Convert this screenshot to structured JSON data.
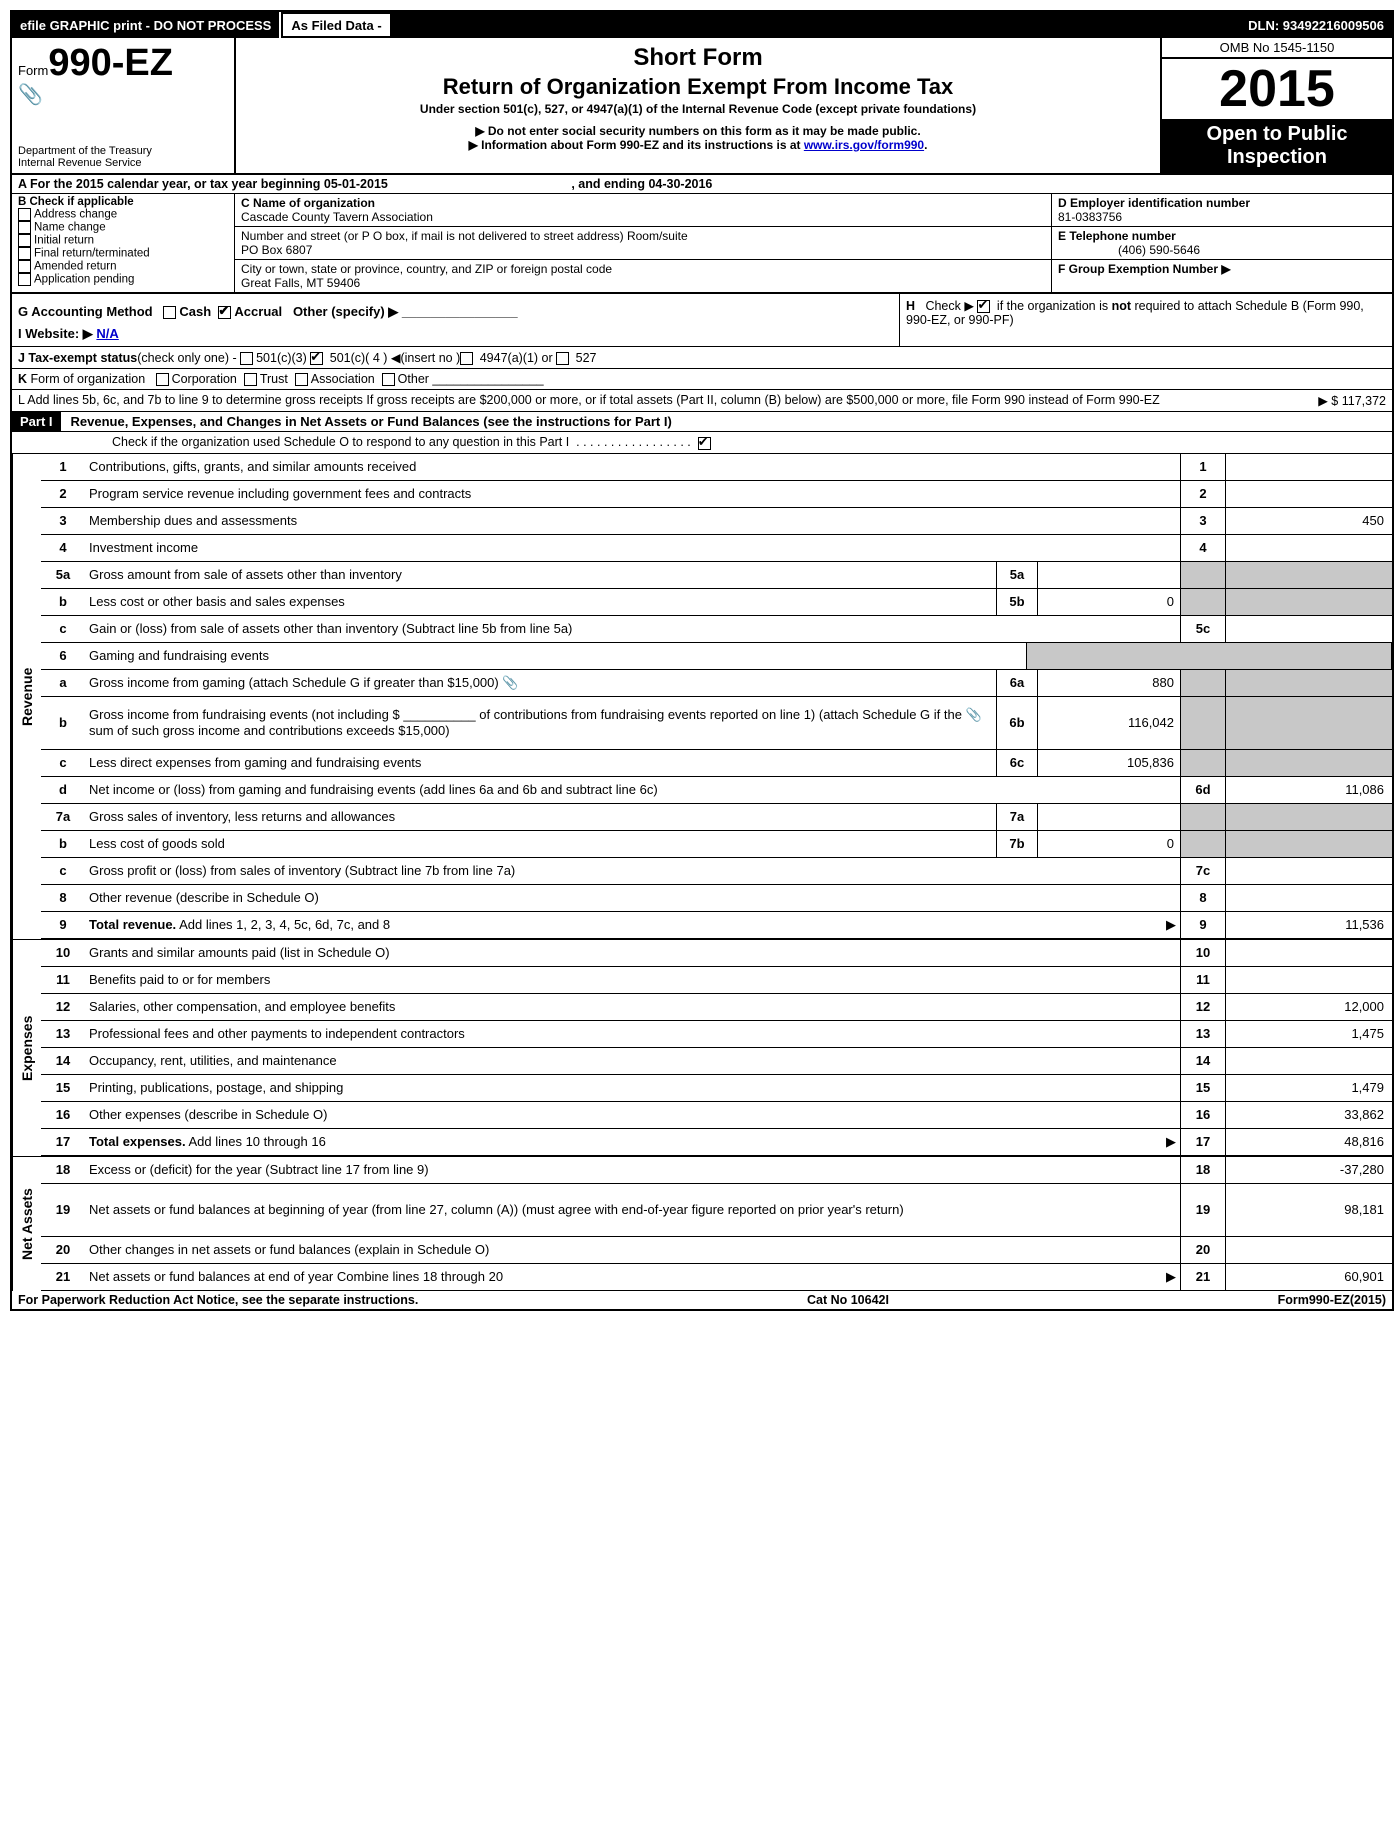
{
  "top": {
    "efile": "efile GRAPHIC print - DO NOT PROCESS",
    "asfiled": "As Filed Data -",
    "dln": "DLN: 93492216009506"
  },
  "header": {
    "form_prefix": "Form",
    "form_no": "990-EZ",
    "dept1": "Department of the Treasury",
    "dept2": "Internal Revenue Service",
    "title1": "Short Form",
    "title2": "Return of Organization Exempt From Income Tax",
    "subtitle": "Under section 501(c), 527, or 4947(a)(1) of the Internal Revenue Code (except private foundations)",
    "bullet1": "▶ Do not enter social security numbers on this form as it may be made public.",
    "bullet2_pre": "▶ Information about Form 990-EZ and its instructions is at ",
    "bullet2_link": "www.irs.gov/form990",
    "omb": "OMB No 1545-1150",
    "year": "2015",
    "open1": "Open to Public",
    "open2": "Inspection"
  },
  "lineA": {
    "text_pre": "A  For the 2015 calendar year, or tax year beginning ",
    "begin": "05-01-2015",
    "mid": ", and ending ",
    "end": "04-30-2016"
  },
  "colB": {
    "header": "B  Check if applicable",
    "items": [
      "Address change",
      "Name change",
      "Initial return",
      "Final return/terminated",
      "Amended return",
      "Application pending"
    ]
  },
  "colC": {
    "c_label": "C Name of organization",
    "c_val": "Cascade County Tavern Association",
    "addr_label": "Number and street (or P  O  box, if mail is not delivered to street address) Room/suite",
    "addr_val": "PO Box 6807",
    "city_label": "City or town, state or province, country, and ZIP or foreign postal code",
    "city_val": "Great Falls, MT  59406"
  },
  "colD": {
    "d_label": "D Employer identification number",
    "d_val": "81-0383756",
    "e_label": "E Telephone number",
    "e_val": "(406) 590-5646",
    "f_label": "F Group Exemption Number   ▶"
  },
  "lineG": {
    "g": "G Accounting Method   ☐ Cash  ☑ Accrual   Other (specify) ▶",
    "h": "H   Check ▶ ☑ if the organization is not required to attach Schedule B (Form 990, 990-EZ, or 990-PF)"
  },
  "lineI": {
    "label": "I Website: ▶",
    "val": "N/A"
  },
  "lineJ": "J Tax-exempt status (check only one) - ☐ 501(c)(3) ☑ 501(c)( 4 ) ◀(insert no )☐ 4947(a)(1) or ☐ 527",
  "lineK": "K Form of organization   ☐ Corporation  ☐ Trust  ☐ Association  ☐ Other",
  "lineL": {
    "text": "L Add lines 5b, 6c, and 7b to line 9 to determine gross receipts  If gross receipts are $200,000 or more, or if total assets (Part II, column (B) below) are $500,000 or more, file Form 990 instead of Form 990-EZ",
    "arrow": "▶ $",
    "val": "117,372"
  },
  "part1": {
    "label": "Part I",
    "title": "Revenue, Expenses, and Changes in Net Assets or Fund Balances (see the instructions for Part I)",
    "check": "Check if the organization used Schedule O to respond to any question in this Part I  .  .  .  .  .  .  .  .  .  .  .  .  .  .  .  .  .  ☑"
  },
  "sections": {
    "revenue": "Revenue",
    "expenses": "Expenses",
    "netassets": "Net Assets"
  },
  "rows": [
    {
      "n": "1",
      "d": "Contributions, gifts, grants, and similar amounts received",
      "rn": "1",
      "a": ""
    },
    {
      "n": "2",
      "d": "Program service revenue including government fees and contracts",
      "rn": "2",
      "a": ""
    },
    {
      "n": "3",
      "d": "Membership dues and assessments",
      "rn": "3",
      "a": "450"
    },
    {
      "n": "4",
      "d": "Investment income",
      "rn": "4",
      "a": ""
    },
    {
      "n": "5a",
      "d": "Gross amount from sale of assets other than inventory",
      "sn": "5a",
      "sa": "",
      "grey": true
    },
    {
      "n": "b",
      "d": "Less  cost or other basis and sales expenses",
      "sn": "5b",
      "sa": "0",
      "grey": true
    },
    {
      "n": "c",
      "d": "Gain or (loss) from sale of assets other than inventory (Subtract line 5b from line 5a)",
      "rn": "5c",
      "a": ""
    },
    {
      "n": "6",
      "d": "Gaming and fundraising events",
      "grey": true,
      "noRight": true
    },
    {
      "n": "a",
      "d": "Gross income from gaming (attach Schedule G if greater than $15,000) 📎",
      "sn": "6a",
      "sa": "880",
      "grey": true
    },
    {
      "n": "b",
      "d": "Gross income from fundraising events (not including $ __________ of contributions from fundraising events reported on line 1) (attach Schedule G if the 📎 sum of such gross income and contributions exceeds $15,000)",
      "sn": "6b",
      "sa": "116,042",
      "grey": true,
      "tall": true
    },
    {
      "n": "c",
      "d": "Less  direct expenses from gaming and fundraising events",
      "sn": "6c",
      "sa": "105,836",
      "grey": true
    },
    {
      "n": "d",
      "d": "Net income or (loss) from gaming and fundraising events (add lines 6a and 6b and subtract line 6c)",
      "rn": "6d",
      "a": "11,086"
    },
    {
      "n": "7a",
      "d": "Gross sales of inventory, less returns and allowances",
      "sn": "7a",
      "sa": "",
      "grey": true
    },
    {
      "n": "b",
      "d": "Less  cost of goods sold",
      "sn": "7b",
      "sa": "0",
      "grey": true
    },
    {
      "n": "c",
      "d": "Gross profit or (loss) from sales of inventory (Subtract line 7b from line 7a)",
      "rn": "7c",
      "a": ""
    },
    {
      "n": "8",
      "d": "Other revenue (describe in Schedule O)",
      "rn": "8",
      "a": ""
    },
    {
      "n": "9",
      "d": "Total revenue. Add lines 1, 2, 3, 4, 5c, 6d, 7c, and 8",
      "rn": "9",
      "a": "11,536",
      "bold": true,
      "arrow": true
    }
  ],
  "exp_rows": [
    {
      "n": "10",
      "d": "Grants and similar amounts paid (list in Schedule O)",
      "rn": "10",
      "a": ""
    },
    {
      "n": "11",
      "d": "Benefits paid to or for members",
      "rn": "11",
      "a": ""
    },
    {
      "n": "12",
      "d": "Salaries, other compensation, and employee benefits",
      "rn": "12",
      "a": "12,000"
    },
    {
      "n": "13",
      "d": "Professional fees and other payments to independent contractors",
      "rn": "13",
      "a": "1,475"
    },
    {
      "n": "14",
      "d": "Occupancy, rent, utilities, and maintenance",
      "rn": "14",
      "a": ""
    },
    {
      "n": "15",
      "d": "Printing, publications, postage, and shipping",
      "rn": "15",
      "a": "1,479"
    },
    {
      "n": "16",
      "d": "Other expenses (describe in Schedule O)",
      "rn": "16",
      "a": "33,862"
    },
    {
      "n": "17",
      "d": "Total expenses. Add lines 10 through 16",
      "rn": "17",
      "a": "48,816",
      "bold": true,
      "arrow": true
    }
  ],
  "net_rows": [
    {
      "n": "18",
      "d": "Excess or (deficit) for the year (Subtract line 17 from line 9)",
      "rn": "18",
      "a": "-37,280"
    },
    {
      "n": "19",
      "d": "Net assets or fund balances at beginning of year (from line 27, column (A)) (must agree with end-of-year figure reported on prior year's return)",
      "rn": "19",
      "a": "98,181",
      "tall": true
    },
    {
      "n": "20",
      "d": "Other changes in net assets or fund balances (explain in Schedule O)",
      "rn": "20",
      "a": ""
    },
    {
      "n": "21",
      "d": "Net assets or fund balances at end of year  Combine lines 18 through 20",
      "rn": "21",
      "a": "60,901",
      "arrow": true
    }
  ],
  "footer": {
    "left": "For Paperwork Reduction Act Notice, see the separate instructions.",
    "mid": "Cat No 10642I",
    "right": "Form 990-EZ (2015)"
  }
}
